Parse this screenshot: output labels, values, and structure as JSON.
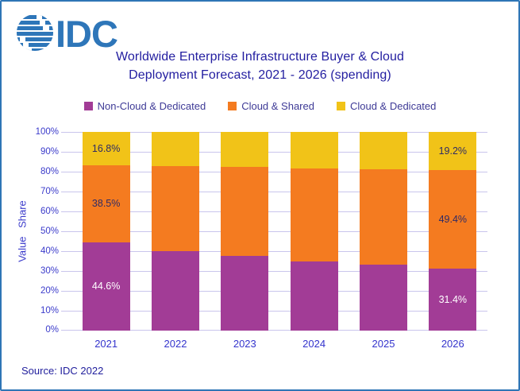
{
  "page": {
    "logo_text": "IDC",
    "source": "Source: IDC 2022",
    "colors": {
      "border": "#2E75B6",
      "logo": "#2E76B9",
      "title_text": "#221DA0",
      "axis_text": "#3B3BCB",
      "year_text": "#3434CD",
      "gridline": "#C9C5EC",
      "legend_text": "#3E3A96",
      "source_text": "#1F1D9C"
    }
  },
  "title": {
    "line1": "Worldwide Enterprise Infrastructure Buyer & Cloud",
    "line2": "Deployment Forecast, 2021 - 2026 (spending)"
  },
  "chart_data": {
    "type": "bar",
    "subtype": "stacked-percent-column",
    "title": "Worldwide Enterprise Infrastructure Buyer & Cloud Deployment Forecast, 2021 - 2026 (spending)",
    "xlabel": "",
    "ylabel": "Value Share",
    "ylim": [
      0,
      100
    ],
    "yticks": [
      "0%",
      "10%",
      "20%",
      "30%",
      "40%",
      "50%",
      "60%",
      "70%",
      "80%",
      "90%",
      "100%"
    ],
    "grid": true,
    "legend_position": "top",
    "categories": [
      "2021",
      "2022",
      "2023",
      "2024",
      "2025",
      "2026"
    ],
    "series": [
      {
        "name": "Non-Cloud & Dedicated",
        "color": "#A23C96",
        "label_color": "#FFFFFF",
        "values": [
          44.6,
          40.0,
          37.5,
          35.0,
          33.2,
          31.4
        ],
        "labels": [
          "44.6%",
          "",
          "",
          "",
          "",
          "31.4%"
        ]
      },
      {
        "name": "Cloud & Shared",
        "color": "#F47B20",
        "label_color": "#2E2B66",
        "values": [
          38.5,
          43.0,
          44.8,
          46.6,
          48.1,
          49.4
        ],
        "labels": [
          "38.5%",
          "",
          "",
          "",
          "",
          "49.4%"
        ]
      },
      {
        "name": "Cloud & Dedicated",
        "color": "#F1C318",
        "label_color": "#2E2B66",
        "values": [
          16.8,
          17.0,
          17.7,
          18.4,
          18.7,
          19.2
        ],
        "labels": [
          "16.8%",
          "",
          "",
          "",
          "",
          "19.2%"
        ]
      }
    ]
  }
}
